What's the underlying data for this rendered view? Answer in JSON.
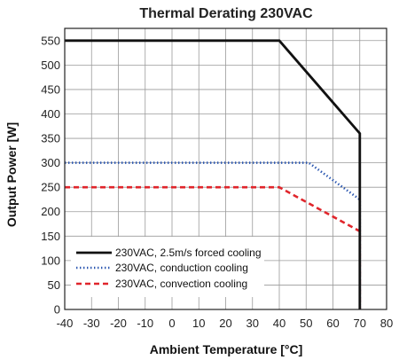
{
  "chart_data": {
    "type": "line",
    "title": "Thermal Derating 230VAC",
    "xlabel": "Ambient Temperature [°C]",
    "ylabel": "Output Power [W]",
    "xlim": [
      -40,
      80
    ],
    "ylim": [
      0,
      575
    ],
    "x_ticks": [
      -40,
      -30,
      -20,
      -10,
      0,
      10,
      20,
      30,
      40,
      50,
      60,
      70,
      80
    ],
    "y_ticks": [
      0,
      50,
      100,
      150,
      200,
      250,
      300,
      350,
      400,
      450,
      500,
      550
    ],
    "x_tick_labels": [
      "-40",
      "-30",
      "-20",
      "-10",
      "0",
      "10",
      "20",
      "30",
      "40",
      "50",
      "60",
      "70",
      "80"
    ],
    "y_tick_labels": [
      "0",
      "50",
      "100",
      "150",
      "200",
      "250",
      "300",
      "350",
      "400",
      "450",
      "500",
      "550"
    ],
    "grid": true,
    "legend_position": "bottom-left",
    "series": [
      {
        "name": "230VAC, 2.5m/s forced cooling",
        "color": "#111111",
        "style": "solid",
        "x": [
          -40,
          40,
          70,
          70
        ],
        "y": [
          550,
          550,
          360,
          0
        ]
      },
      {
        "name": "230VAC, conduction cooling",
        "color": "#2a56b0",
        "style": "dotted",
        "x": [
          -40,
          51,
          70,
          70
        ],
        "y": [
          300,
          300,
          225,
          0
        ]
      },
      {
        "name": "230VAC, convection cooling",
        "color": "#e0252b",
        "style": "dashed",
        "x": [
          -40,
          40,
          70,
          70
        ],
        "y": [
          250,
          250,
          160,
          0
        ]
      }
    ]
  }
}
